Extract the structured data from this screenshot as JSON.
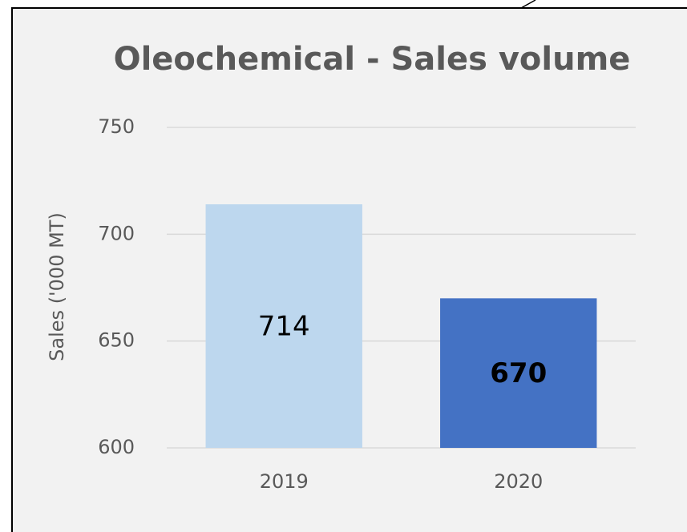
{
  "chart_data": {
    "type": "bar",
    "title": "Oleochemical - Sales volume",
    "y_label": "Sales ('000 MT)",
    "categories": [
      "2019",
      "2020"
    ],
    "values": [
      714,
      670
    ],
    "colors": [
      "#bdd7ee",
      "#4472c4"
    ],
    "ylim": [
      600,
      750
    ],
    "yticks": [
      600,
      650,
      700,
      750
    ],
    "grid": true
  }
}
